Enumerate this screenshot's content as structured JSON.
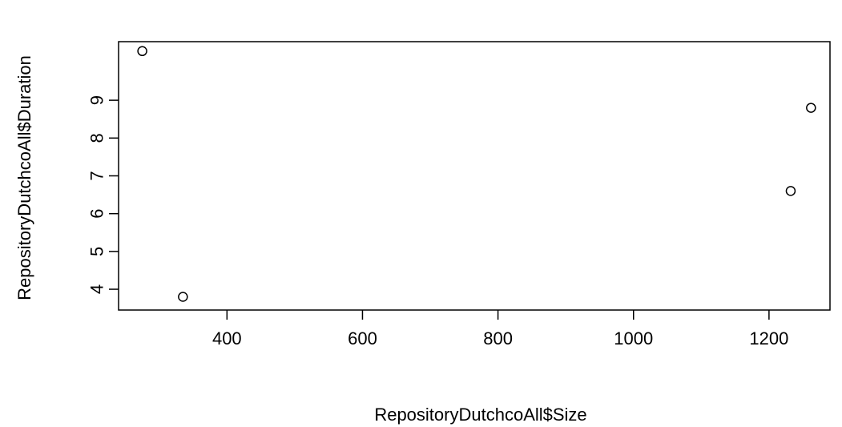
{
  "chart_data": {
    "type": "scatter",
    "title": "",
    "xlabel": "RepositoryDutchcoAll$Size",
    "ylabel": "RepositoryDutchcoAll$Duration",
    "xlim": [
      240,
      1290
    ],
    "ylim": [
      3.45,
      10.55
    ],
    "x_ticks": [
      400,
      600,
      800,
      1000,
      1200
    ],
    "y_ticks": [
      4,
      5,
      6,
      7,
      8,
      9
    ],
    "grid": false,
    "legend": "none",
    "marker": "open-circle",
    "color": "#000000",
    "points": [
      {
        "x": 275,
        "y": 10.3
      },
      {
        "x": 335,
        "y": 3.8
      },
      {
        "x": 1232,
        "y": 6.6
      },
      {
        "x": 1262,
        "y": 8.8
      }
    ]
  }
}
